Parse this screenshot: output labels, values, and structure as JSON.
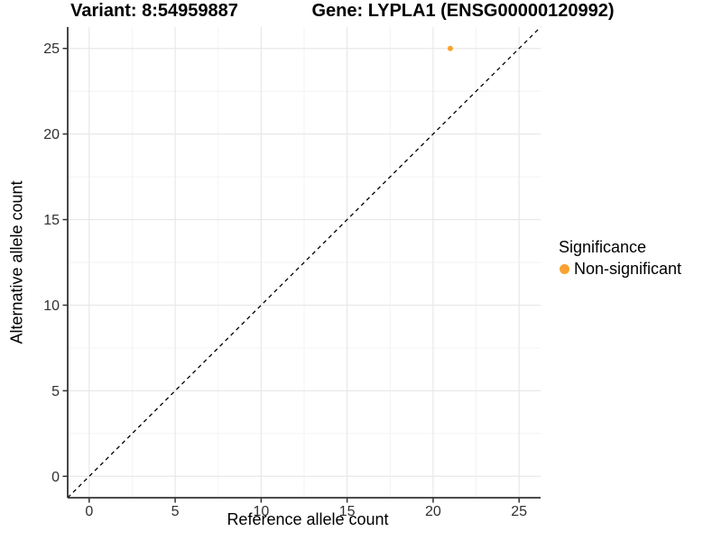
{
  "titles": {
    "variant": "Variant: 8:54959887",
    "gene": "Gene: LYPLA1 (ENSG00000120992)"
  },
  "colors": {
    "point": "#F9A232",
    "grid_major": "#E8E8E8",
    "grid_minor": "#F2F2F2",
    "axis_line": "#333333",
    "tick_mark": "#333333",
    "diagonal_line": "#000000",
    "tick_text": "#303030"
  },
  "chart_data": {
    "type": "scatter",
    "title_left": "Variant: 8:54959887",
    "title_right": "Gene: LYPLA1 (ENSG00000120992)",
    "xlabel": "Reference allele count",
    "ylabel": "Alternative allele count",
    "xlim": [
      -1.25,
      26.25
    ],
    "ylim": [
      -1.25,
      26.25
    ],
    "x_ticks": [
      0,
      5,
      10,
      15,
      20,
      25
    ],
    "y_ticks": [
      0,
      5,
      10,
      15,
      20,
      25
    ],
    "x_minor_ticks": [
      2.5,
      7.5,
      12.5,
      17.5,
      22.5
    ],
    "y_minor_ticks": [
      2.5,
      7.5,
      12.5,
      17.5,
      22.5
    ],
    "grid": true,
    "series": [
      {
        "name": "Non-significant",
        "color": "#F9A232",
        "points": [
          {
            "x": 21,
            "y": 25
          }
        ]
      }
    ],
    "reference_line": {
      "type": "identity",
      "slope": 1,
      "intercept": 0,
      "style": "dashed",
      "color": "#000000"
    },
    "legend": {
      "title": "Significance",
      "position": "right",
      "items": [
        {
          "label": "Non-significant",
          "color": "#F9A232"
        }
      ]
    }
  }
}
